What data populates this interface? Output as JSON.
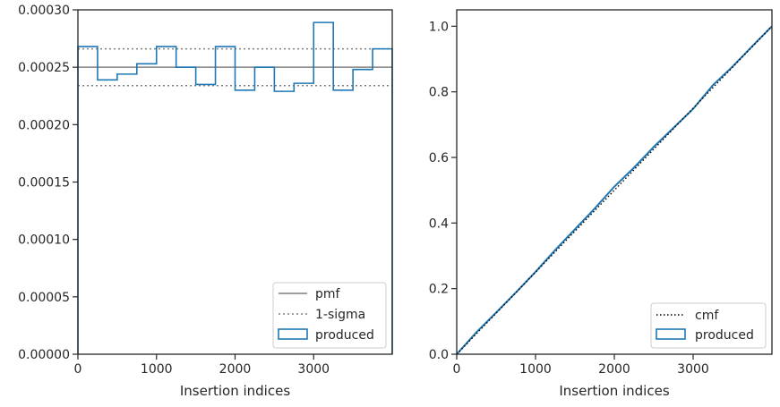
{
  "colors": {
    "produced": "#1f77b4",
    "pmf": "#808080",
    "sigma": "#808080",
    "cmf": "#000000",
    "axes": "#262626",
    "legend_border": "#cccccc"
  },
  "chart_data": [
    {
      "type": "histogram",
      "xlabel": "Insertion indices",
      "ylabel": "",
      "xlim": [
        0,
        4000
      ],
      "ylim": [
        0,
        0.0003
      ],
      "x_ticks": [
        "0",
        "1000",
        "2000",
        "3000"
      ],
      "x_tick_values": [
        0,
        1000,
        2000,
        3000
      ],
      "y_ticks": [
        "0.00000",
        "0.00005",
        "0.00010",
        "0.00015",
        "0.00020",
        "0.00025",
        "0.00030"
      ],
      "y_tick_values": [
        0,
        5e-05,
        0.0001,
        0.00015,
        0.0002,
        0.00025,
        0.0003
      ],
      "legend": {
        "position": "lower right",
        "entries": [
          "pmf",
          "1-sigma",
          "produced"
        ]
      },
      "pmf": 0.00025,
      "sigma_band": [
        0.000234,
        0.000266
      ],
      "bin_edges": [
        0,
        250,
        500,
        750,
        1000,
        1250,
        1500,
        1750,
        2000,
        2250,
        2500,
        2750,
        3000,
        3250,
        3500,
        3750,
        4000
      ],
      "produced": [
        0.000268,
        0.000239,
        0.000244,
        0.000253,
        0.000268,
        0.00025,
        0.000235,
        0.000268,
        0.00023,
        0.00025,
        0.000229,
        0.000236,
        0.000289,
        0.00023,
        0.000248,
        0.000266
      ]
    },
    {
      "type": "line",
      "xlabel": "Insertion indices",
      "ylabel": "",
      "xlim": [
        0,
        4000
      ],
      "ylim": [
        0,
        1.05
      ],
      "x_ticks": [
        "0",
        "1000",
        "2000",
        "3000"
      ],
      "x_tick_values": [
        0,
        1000,
        2000,
        3000
      ],
      "y_ticks": [
        "0.0",
        "0.2",
        "0.4",
        "0.6",
        "0.8",
        "1.0"
      ],
      "y_tick_values": [
        0,
        0.2,
        0.4,
        0.6,
        0.8,
        1.0
      ],
      "legend": {
        "position": "lower right",
        "entries": [
          "cmf",
          "produced"
        ]
      },
      "cmf": {
        "x": [
          0,
          4000
        ],
        "y": [
          0,
          1.0
        ]
      },
      "produced": {
        "x": [
          0,
          250,
          500,
          750,
          1000,
          1250,
          1500,
          1750,
          2000,
          2250,
          2500,
          2750,
          3000,
          3250,
          3500,
          3750,
          4000
        ],
        "y": [
          0,
          0.067,
          0.127,
          0.188,
          0.251,
          0.318,
          0.381,
          0.444,
          0.511,
          0.569,
          0.632,
          0.69,
          0.748,
          0.82,
          0.877,
          0.939,
          1.0
        ]
      }
    }
  ]
}
